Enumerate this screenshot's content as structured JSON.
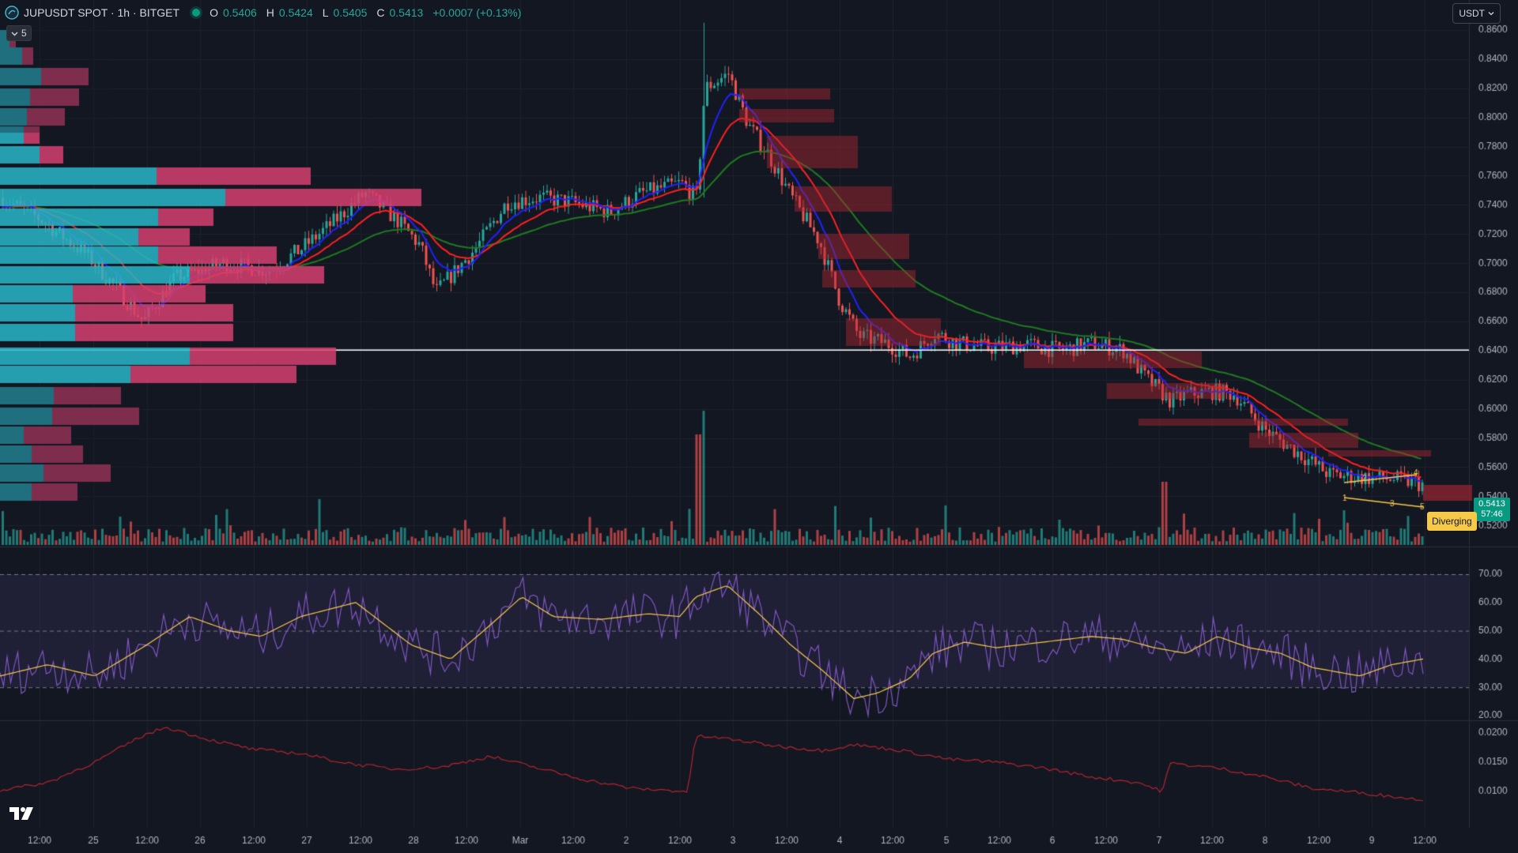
{
  "header": {
    "symbol": "JUPUSDT SPOT · 1h · BITGET",
    "open_label": "O",
    "open": "0.5406",
    "high_label": "H",
    "high": "0.5424",
    "low_label": "L",
    "low": "0.5405",
    "close_label": "C",
    "close": "0.5413",
    "change": "+0.0007 (+0.13%)"
  },
  "collapse_count": "5",
  "currency_button": "USDT",
  "last_price": "0.5413",
  "countdown": "57:46",
  "pattern_label": "Diverging",
  "price_axis": [
    "0.8600",
    "0.8400",
    "0.8200",
    "0.8000",
    "0.7800",
    "0.7600",
    "0.7400",
    "0.7200",
    "0.7000",
    "0.6800",
    "0.6600",
    "0.6400",
    "0.6200",
    "0.6000",
    "0.5800",
    "0.5600",
    "0.5400",
    "0.5200"
  ],
  "rsi_axis": [
    "70.00",
    "60.00",
    "50.00",
    "40.00",
    "30.00",
    "20.00"
  ],
  "vol_axis": [
    "0.0200",
    "0.0150",
    "0.0100"
  ],
  "time_axis": [
    "12:00",
    "25",
    "12:00",
    "26",
    "12:00",
    "27",
    "12:00",
    "28",
    "12:00",
    "Mar",
    "12:00",
    "2",
    "12:00",
    "3",
    "12:00",
    "4",
    "12:00",
    "5",
    "12:00",
    "6",
    "12:00",
    "7",
    "12:00",
    "8",
    "12:00",
    "9",
    "12:00"
  ],
  "wedge_points": [
    "1",
    "2",
    "3",
    "4",
    "5"
  ],
  "colors": {
    "background": "#131722",
    "up": "#26a69a",
    "down": "#ef5350",
    "ema_fast": "#2121ff",
    "ema_mid": "#ff1f1f",
    "ema_slow": "#1f7a1f",
    "rsi": "#7e57c2",
    "rsi_ma": "#f7c948",
    "volatility": "#b2242e",
    "vp_up": "#29b6c8",
    "vp_down": "#d6406f"
  },
  "icons": [
    "tradingview-logo-icon",
    "chevron-down-icon",
    "status-dot-icon",
    "symbol-logo-icon"
  ]
}
